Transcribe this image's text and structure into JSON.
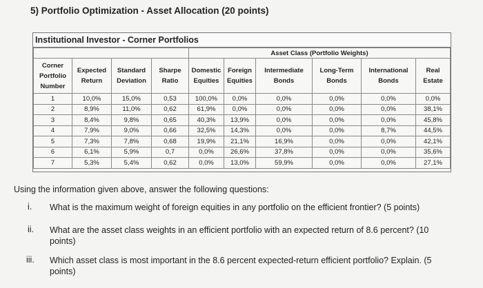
{
  "heading": "5) Portfolio Optimization - Asset Allocation (20 points)",
  "table": {
    "title": "Institutional Investor - Corner Portfolios",
    "group_header": "Asset Class (Portfolio Weights)",
    "columns": [
      "Corner Portfolio Number",
      "Expected Return",
      "Standard Deviation",
      "Sharpe Ratio",
      "Domestic Equities",
      "Foreign Equities",
      "Intermediate Bonds",
      "Long-Term Bonds",
      "International Bonds",
      "Real Estate"
    ],
    "rows": [
      [
        "1",
        "10,0%",
        "15,0%",
        "0,53",
        "100,0%",
        "0,0%",
        "0,0%",
        "0,0%",
        "0,0%",
        "0,0%"
      ],
      [
        "2",
        "8,9%",
        "11,0%",
        "0,62",
        "61,9%",
        "0,0%",
        "0,0%",
        "0,0%",
        "0,0%",
        "38,1%"
      ],
      [
        "3",
        "8,4%",
        "9,8%",
        "0,65",
        "40,3%",
        "13,9%",
        "0,0%",
        "0,0%",
        "0,0%",
        "45,8%"
      ],
      [
        "4",
        "7,9%",
        "9,0%",
        "0,66",
        "32,5%",
        "14,3%",
        "0,0%",
        "0,0%",
        "8,7%",
        "44,5%"
      ],
      [
        "5",
        "7,3%",
        "7,8%",
        "0,68",
        "19,9%",
        "21,1%",
        "16,9%",
        "0,0%",
        "0,0%",
        "42,1%"
      ],
      [
        "6",
        "6,1%",
        "5,9%",
        "0,7",
        "0,0%",
        "26,6%",
        "37,8%",
        "0,0%",
        "0,0%",
        "35,6%"
      ],
      [
        "7",
        "5,3%",
        "5,4%",
        "0,62",
        "0,0%",
        "13,0%",
        "59,9%",
        "0,0%",
        "0,0%",
        "27,1%"
      ]
    ]
  },
  "intro": "Using the information given above, answer the following questions:",
  "questions": [
    {
      "num": "i.",
      "text": "What is the maximum weight of foreign equities in any portfolio on the efficient frontier? (5 points)"
    },
    {
      "num": "ii.",
      "text": "What are the asset class weights in an efficient portfolio with an expected return of 8.6 percent? (10 points)"
    },
    {
      "num": "iii.",
      "text": "Which asset class is most important in the 8.6 percent expected-return efficient portfolio? Explain. (5 points)"
    }
  ]
}
